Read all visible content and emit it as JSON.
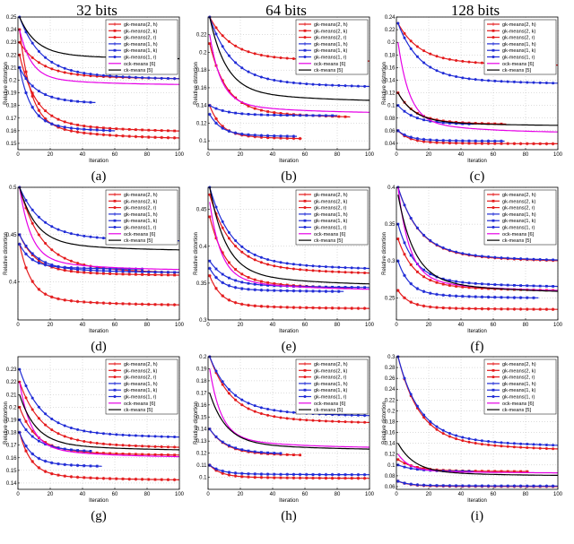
{
  "column_titles": [
    "32 bits",
    "64 bits",
    "128 bits"
  ],
  "legend_entries": [
    "gk-means(2, h)",
    "gk-means(2, k)",
    "gk-means(2, r)",
    "gk-means(1, h)",
    "gk-means(1, k)",
    "gk-means(1, r)",
    "ock-means [6]",
    "ck-means [5]"
  ],
  "series_colors": [
    "#e41a1c",
    "#e41a1c",
    "#e41a1c",
    "#1f2bd6",
    "#1f2bd6",
    "#1f2bd6",
    "#e600e6",
    "#000000"
  ],
  "xlabel": "Iteration",
  "ylabel": "Relative distortion",
  "chart_data": [
    {
      "type": "line",
      "sublabel": "(a)",
      "xlim": [
        0,
        100
      ],
      "ylim": [
        0.145,
        0.25
      ],
      "yticks": [
        0.15,
        0.16,
        0.17,
        0.18,
        0.19,
        0.2,
        0.21,
        0.22,
        0.23,
        0.24,
        0.25
      ],
      "xticks": [
        0,
        20,
        40,
        60,
        80,
        100
      ],
      "series": [
        {
          "start": 0.24,
          "end": 0.153,
          "n": 100
        },
        {
          "start": 0.22,
          "end": 0.158,
          "n": 100
        },
        {
          "start": 0.23,
          "end": 0.2,
          "n": 100
        },
        {
          "start": 0.21,
          "end": 0.158,
          "n": 60
        },
        {
          "start": 0.21,
          "end": 0.18,
          "n": 48
        },
        {
          "start": 0.25,
          "end": 0.199,
          "n": 100
        },
        {
          "start": 0.24,
          "end": 0.196,
          "n": 100
        },
        {
          "start": 0.25,
          "end": 0.216,
          "n": 100
        }
      ]
    },
    {
      "type": "line",
      "sublabel": "(b)",
      "xlim": [
        0,
        100
      ],
      "ylim": [
        0.09,
        0.24
      ],
      "yticks": [
        0.1,
        0.12,
        0.14,
        0.16,
        0.18,
        0.2,
        0.22
      ],
      "xticks": [
        0,
        20,
        40,
        60,
        80,
        100
      ],
      "series": [
        {
          "start": 0.14,
          "end": 0.101,
          "n": 58
        },
        {
          "start": 0.21,
          "end": 0.124,
          "n": 88
        },
        {
          "start": 0.24,
          "end": 0.188,
          "n": 100
        },
        {
          "start": 0.13,
          "end": 0.104,
          "n": 55
        },
        {
          "start": 0.14,
          "end": 0.128,
          "n": 80
        },
        {
          "start": 0.24,
          "end": 0.158,
          "n": 100
        },
        {
          "start": 0.22,
          "end": 0.131,
          "n": 100
        },
        {
          "start": 0.24,
          "end": 0.143,
          "n": 100
        }
      ]
    },
    {
      "type": "line",
      "sublabel": "(c)",
      "xlim": [
        0,
        100
      ],
      "ylim": [
        0.03,
        0.24
      ],
      "yticks": [
        0.04,
        0.06,
        0.08,
        0.1,
        0.12,
        0.14,
        0.16,
        0.18,
        0.2,
        0.22,
        0.24
      ],
      "xticks": [
        0,
        20,
        40,
        60,
        80,
        100
      ],
      "series": [
        {
          "start": 0.06,
          "end": 0.039,
          "n": 100
        },
        {
          "start": 0.12,
          "end": 0.068,
          "n": 68
        },
        {
          "start": 0.23,
          "end": 0.161,
          "n": 100
        },
        {
          "start": 0.06,
          "end": 0.043,
          "n": 67
        },
        {
          "start": 0.1,
          "end": 0.068,
          "n": 48
        },
        {
          "start": 0.23,
          "end": 0.131,
          "n": 100
        },
        {
          "start": 0.2,
          "end": 0.056,
          "n": 100
        },
        {
          "start": 0.12,
          "end": 0.067,
          "n": 100
        }
      ]
    },
    {
      "type": "line",
      "sublabel": "(d)",
      "xlim": [
        0,
        100
      ],
      "ylim": [
        0.36,
        0.5
      ],
      "yticks": [
        0.4,
        0.45,
        0.5
      ],
      "xticks": [
        0,
        20,
        40,
        60,
        80,
        100
      ],
      "series": [
        {
          "start": 0.44,
          "end": 0.375,
          "n": 100
        },
        {
          "start": 0.45,
          "end": 0.406,
          "n": 100
        },
        {
          "start": 0.5,
          "end": 0.406,
          "n": 100
        },
        {
          "start": 0.44,
          "end": 0.413,
          "n": 77
        },
        {
          "start": 0.45,
          "end": 0.409,
          "n": 100
        },
        {
          "start": 0.5,
          "end": 0.441,
          "n": 100
        },
        {
          "start": 0.5,
          "end": 0.412,
          "n": 100
        },
        {
          "start": 0.5,
          "end": 0.432,
          "n": 100
        }
      ]
    },
    {
      "type": "line",
      "sublabel": "(e)",
      "xlim": [
        0,
        100
      ],
      "ylim": [
        0.3,
        0.48
      ],
      "yticks": [
        0.3,
        0.35,
        0.4,
        0.45
      ],
      "xticks": [
        0,
        20,
        40,
        60,
        80,
        100
      ],
      "series": [
        {
          "start": 0.36,
          "end": 0.315,
          "n": 100
        },
        {
          "start": 0.44,
          "end": 0.34,
          "n": 88
        },
        {
          "start": 0.47,
          "end": 0.359,
          "n": 100
        },
        {
          "start": 0.37,
          "end": 0.338,
          "n": 84
        },
        {
          "start": 0.38,
          "end": 0.343,
          "n": 100
        },
        {
          "start": 0.48,
          "end": 0.365,
          "n": 100
        },
        {
          "start": 0.46,
          "end": 0.34,
          "n": 100
        },
        {
          "start": 0.48,
          "end": 0.345,
          "n": 100
        }
      ]
    },
    {
      "type": "line",
      "sublabel": "(f)",
      "xlim": [
        0,
        100
      ],
      "ylim": [
        0.22,
        0.4
      ],
      "yticks": [
        0.25,
        0.3,
        0.35,
        0.4
      ],
      "xticks": [
        0,
        20,
        40,
        60,
        80,
        100
      ],
      "series": [
        {
          "start": 0.26,
          "end": 0.234,
          "n": 100
        },
        {
          "start": 0.33,
          "end": 0.258,
          "n": 100
        },
        {
          "start": 0.4,
          "end": 0.296,
          "n": 100
        },
        {
          "start": 0.3,
          "end": 0.249,
          "n": 88
        },
        {
          "start": 0.35,
          "end": 0.263,
          "n": 100
        },
        {
          "start": 0.4,
          "end": 0.297,
          "n": 100
        },
        {
          "start": 0.4,
          "end": 0.258,
          "n": 100
        },
        {
          "start": 0.39,
          "end": 0.255,
          "n": 100
        }
      ]
    },
    {
      "type": "line",
      "sublabel": "(g)",
      "xlim": [
        0,
        100
      ],
      "ylim": [
        0.135,
        0.24
      ],
      "yticks": [
        0.14,
        0.15,
        0.16,
        0.17,
        0.18,
        0.19,
        0.2,
        0.21,
        0.22,
        0.23
      ],
      "xticks": [
        0,
        20,
        40,
        60,
        80,
        100
      ],
      "series": [
        {
          "start": 0.18,
          "end": 0.142,
          "n": 100
        },
        {
          "start": 0.2,
          "end": 0.161,
          "n": 100
        },
        {
          "start": 0.22,
          "end": 0.166,
          "n": 100
        },
        {
          "start": 0.18,
          "end": 0.152,
          "n": 52
        },
        {
          "start": 0.19,
          "end": 0.163,
          "n": 45
        },
        {
          "start": 0.23,
          "end": 0.174,
          "n": 100
        },
        {
          "start": 0.22,
          "end": 0.16,
          "n": 100
        },
        {
          "start": 0.21,
          "end": 0.165,
          "n": 100
        }
      ]
    },
    {
      "type": "line",
      "sublabel": "(h)",
      "xlim": [
        0,
        100
      ],
      "ylim": [
        0.09,
        0.2
      ],
      "yticks": [
        0.1,
        0.11,
        0.12,
        0.13,
        0.14,
        0.15,
        0.16,
        0.17,
        0.18,
        0.19,
        0.2
      ],
      "xticks": [
        0,
        20,
        40,
        60,
        80,
        100
      ],
      "series": [
        {
          "start": 0.11,
          "end": 0.099,
          "n": 100
        },
        {
          "start": 0.14,
          "end": 0.117,
          "n": 57
        },
        {
          "start": 0.2,
          "end": 0.143,
          "n": 100
        },
        {
          "start": 0.11,
          "end": 0.102,
          "n": 100
        },
        {
          "start": 0.14,
          "end": 0.118,
          "n": 45
        },
        {
          "start": 0.2,
          "end": 0.149,
          "n": 100
        },
        {
          "start": 0.19,
          "end": 0.124,
          "n": 100
        },
        {
          "start": 0.17,
          "end": 0.122,
          "n": 100
        }
      ]
    },
    {
      "type": "line",
      "sublabel": "(i)",
      "xlim": [
        0,
        100
      ],
      "ylim": [
        0.055,
        0.3
      ],
      "yticks": [
        0.06,
        0.08,
        0.1,
        0.12,
        0.14,
        0.16,
        0.18,
        0.2,
        0.22,
        0.24,
        0.26,
        0.28,
        0.3
      ],
      "xticks": [
        0,
        20,
        40,
        60,
        80,
        100
      ],
      "series": [
        {
          "start": 0.07,
          "end": 0.06,
          "n": 100
        },
        {
          "start": 0.11,
          "end": 0.087,
          "n": 82
        },
        {
          "start": 0.3,
          "end": 0.122,
          "n": 100
        },
        {
          "start": 0.07,
          "end": 0.061,
          "n": 100
        },
        {
          "start": 0.1,
          "end": 0.087,
          "n": 48
        },
        {
          "start": 0.3,
          "end": 0.129,
          "n": 100
        },
        {
          "start": 0.12,
          "end": 0.085,
          "n": 100
        },
        {
          "start": 0.14,
          "end": 0.079,
          "n": 100
        }
      ]
    }
  ]
}
